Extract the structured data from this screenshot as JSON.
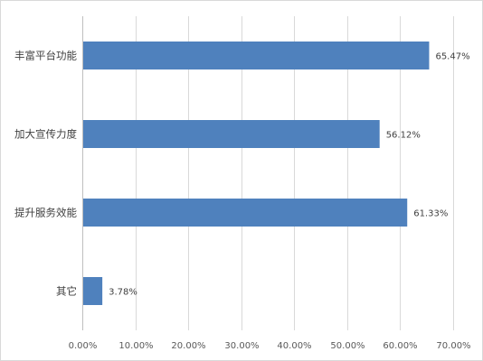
{
  "chart_data": {
    "type": "bar",
    "orientation": "horizontal",
    "categories": [
      "丰富平台功能",
      "加大宣传力度",
      "提升服务效能",
      "其它"
    ],
    "values": [
      65.47,
      56.12,
      61.33,
      3.78
    ],
    "value_labels": [
      "65.47%",
      "56.12%",
      "61.33%",
      "3.78%"
    ],
    "xlim": [
      0,
      70
    ],
    "x_ticks": [
      "0.00%",
      "10.00%",
      "20.00%",
      "30.00%",
      "40.00%",
      "50.00%",
      "60.00%",
      "70.00%"
    ],
    "title": "",
    "xlabel": "",
    "ylabel": "",
    "grid": "vertical",
    "legend": "none",
    "bar_color": "#4f81bd"
  }
}
